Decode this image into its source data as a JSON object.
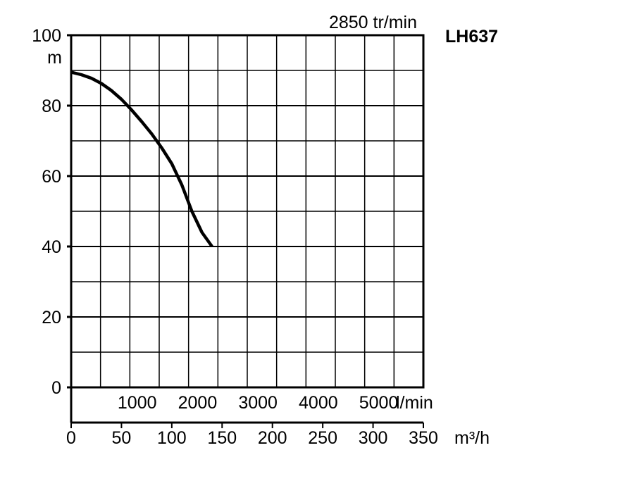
{
  "chart_data": {
    "type": "line",
    "title": "LH637",
    "subtitle": "2850 tr/min",
    "ylabel": "m",
    "ylim": [
      0,
      100
    ],
    "y_ticks": [
      "0",
      "20",
      "40",
      "60",
      "80",
      "100"
    ],
    "x": [
      0,
      10,
      20,
      30,
      40,
      50,
      60,
      70,
      80,
      90,
      100,
      110,
      120,
      130,
      140
    ],
    "series": [
      {
        "values": [
          89.5,
          88.8,
          87.8,
          86.3,
          84.3,
          81.8,
          78.8,
          75.5,
          72.0,
          68.0,
          63.5,
          57.5,
          50.0,
          44.0,
          40.0
        ]
      }
    ],
    "axis_lmin": {
      "unit": "l/min",
      "ticks": [
        "1000",
        "2000",
        "3000",
        "4000",
        "5000"
      ]
    },
    "axis_m3h": {
      "unit": "m³/h",
      "xlim": [
        0,
        350
      ],
      "ticks": [
        "0",
        "50",
        "100",
        "150",
        "200",
        "250",
        "300",
        "350"
      ]
    },
    "grid": true,
    "legend": "none",
    "line_color": "#000000"
  }
}
